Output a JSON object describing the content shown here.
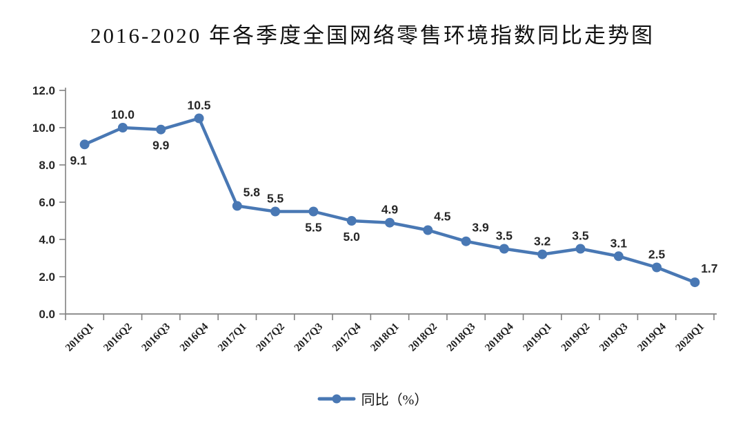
{
  "title": "2016-2020 年各季度全国网络零售环境指数同比走势图",
  "legend": {
    "label": "同比（%）"
  },
  "colors": {
    "line": "#4978B4",
    "marker": "#4978B4",
    "axis": "#808080",
    "tick_text": "#262626",
    "data_label_text": "#1f1f1f"
  },
  "chart_data": {
    "type": "line",
    "title": "2016-2020 年各季度全国网络零售环境指数同比走势图",
    "categories": [
      "2016Q1",
      "2016Q2",
      "2016Q3",
      "2016Q4",
      "2017Q1",
      "2017Q2",
      "2017Q3",
      "2017Q4",
      "2018Q1",
      "2018Q2",
      "2018Q3",
      "2018Q4",
      "2019Q1",
      "2019Q2",
      "2019Q3",
      "2019Q4",
      "2020Q1"
    ],
    "series": [
      {
        "name": "同比（%）",
        "values": [
          9.1,
          10.0,
          9.9,
          10.5,
          5.8,
          5.5,
          5.5,
          5.0,
          4.9,
          4.5,
          3.9,
          3.5,
          3.2,
          3.5,
          3.1,
          2.5,
          1.7
        ]
      }
    ],
    "xlabel": "",
    "ylabel": "",
    "ylim": [
      0,
      12
    ],
    "ytick_step": 2,
    "ytick_labels": [
      "0.0",
      "2.0",
      "4.0",
      "6.0",
      "8.0",
      "10.0",
      "12.0"
    ],
    "grid": false,
    "data_labels": true,
    "legend_position": "bottom",
    "label_positions": [
      "below-left",
      "above",
      "below",
      "above",
      "above-right",
      "above",
      "below",
      "below",
      "above",
      "above-right",
      "above-right",
      "above",
      "above",
      "above",
      "above",
      "above",
      "above-right"
    ]
  }
}
